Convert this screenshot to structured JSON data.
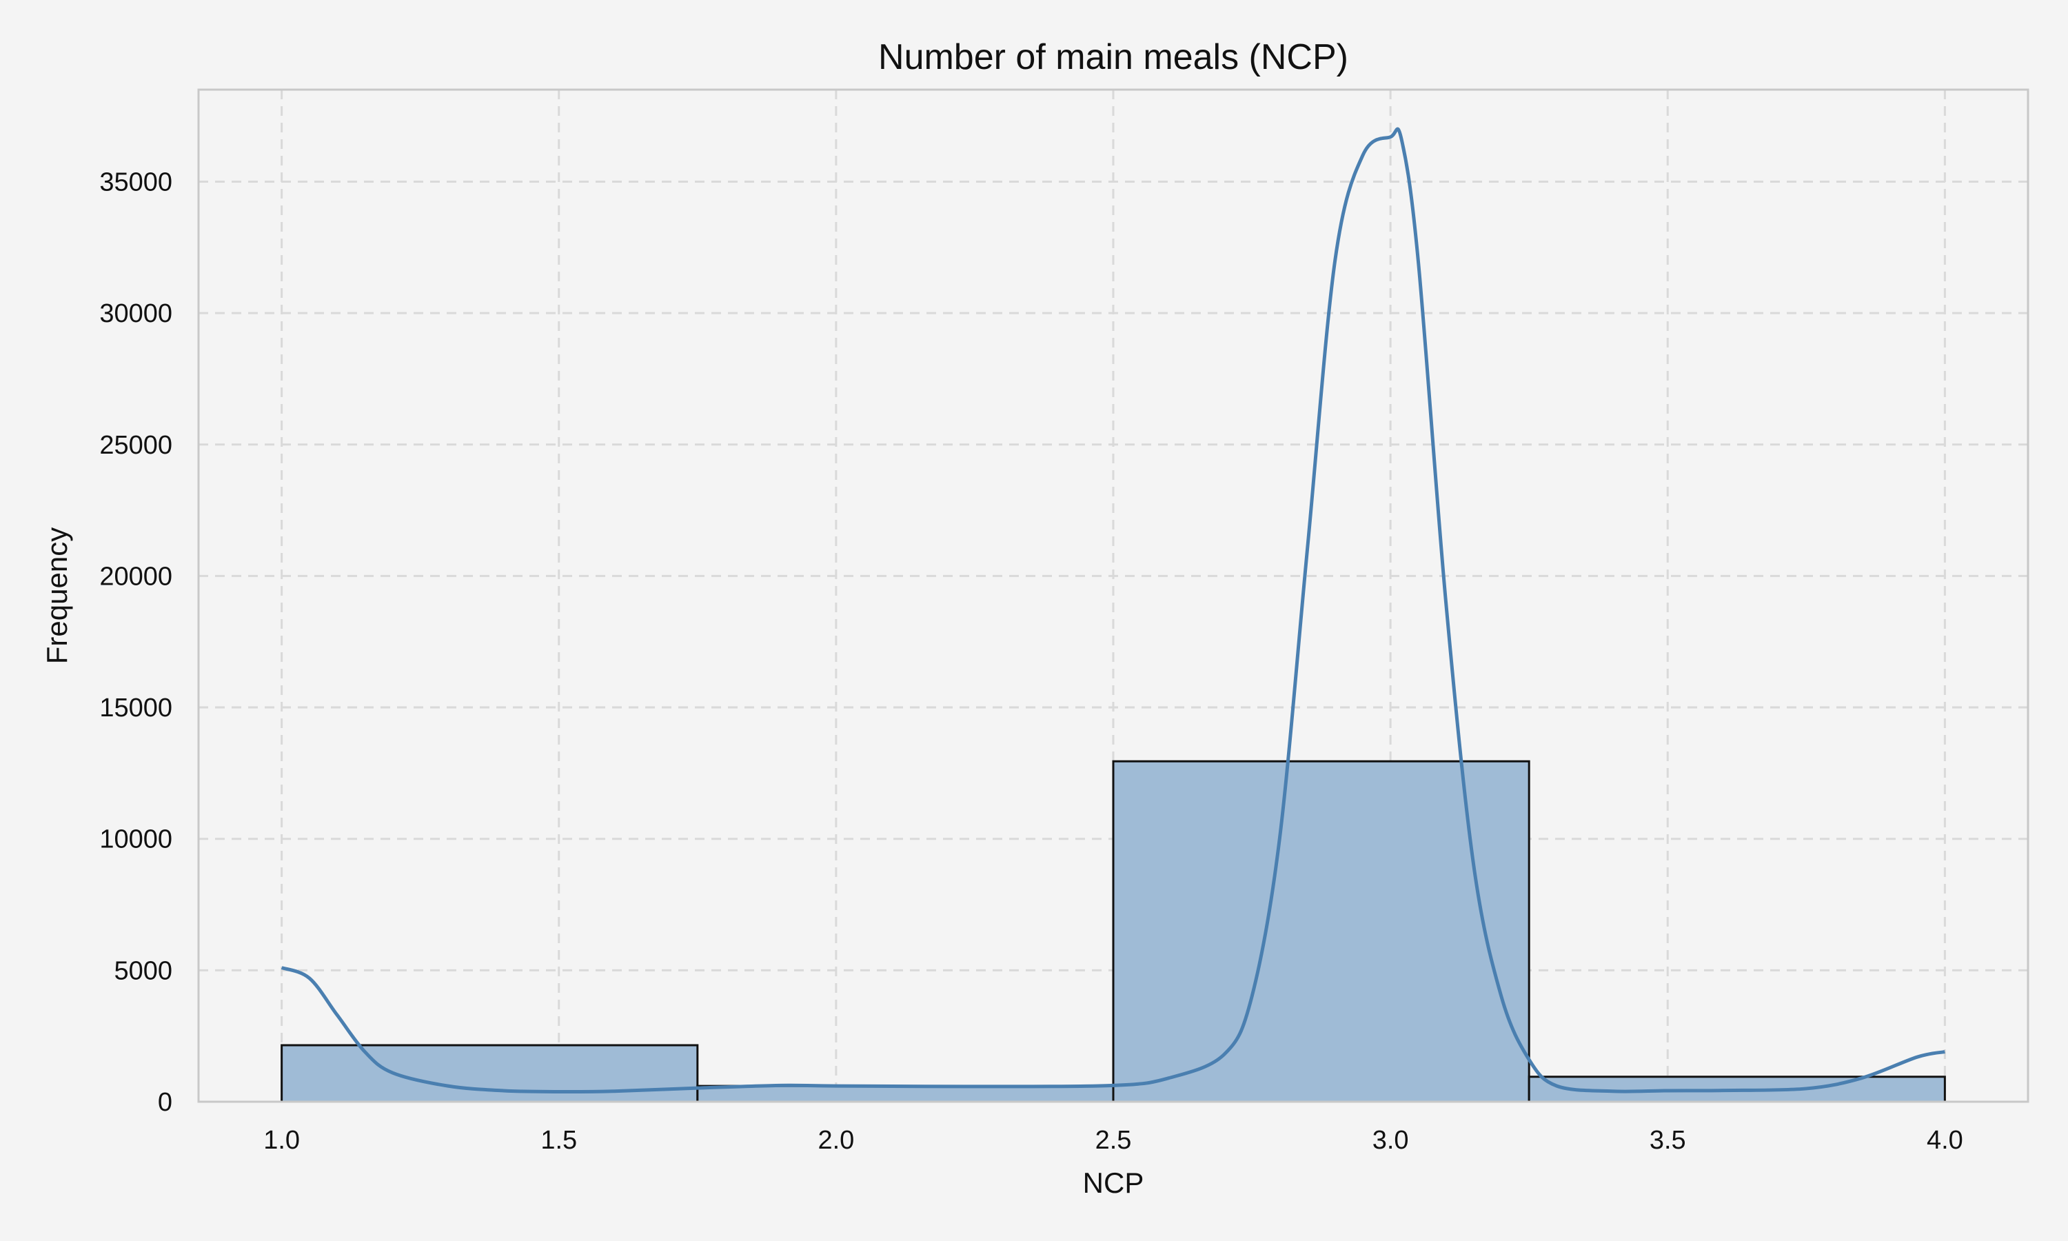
{
  "chart_data": {
    "type": "bar",
    "title": "Number of main meals (NCP)",
    "xlabel": "NCP",
    "ylabel": "Frequency",
    "xlim": [
      0.85,
      4.15
    ],
    "ylim": [
      0,
      38500
    ],
    "xticks": [
      1.0,
      1.5,
      2.0,
      2.5,
      3.0,
      3.5,
      4.0
    ],
    "xtick_labels": [
      "1.0",
      "1.5",
      "2.0",
      "2.5",
      "3.0",
      "3.5",
      "4.0"
    ],
    "yticks": [
      0,
      5000,
      10000,
      15000,
      20000,
      25000,
      30000,
      35000
    ],
    "ytick_labels": [
      "0",
      "5000",
      "10000",
      "15000",
      "20000",
      "25000",
      "30000",
      "35000"
    ],
    "grid": true,
    "bins": [
      {
        "start": 1.0,
        "end": 1.75,
        "count": 2150
      },
      {
        "start": 1.75,
        "end": 2.5,
        "count": 600
      },
      {
        "start": 2.5,
        "end": 3.25,
        "count": 12950
      },
      {
        "start": 3.25,
        "end": 4.0,
        "count": 950
      }
    ],
    "kde": {
      "x": [
        1.0,
        1.05,
        1.1,
        1.15,
        1.2,
        1.3,
        1.4,
        1.5,
        1.6,
        1.75,
        1.9,
        2.0,
        2.25,
        2.5,
        2.6,
        2.7,
        2.75,
        2.8,
        2.85,
        2.9,
        2.95,
        3.0,
        3.02,
        3.05,
        3.1,
        3.15,
        3.2,
        3.25,
        3.3,
        3.4,
        3.5,
        3.6,
        3.75,
        3.85,
        3.95,
        4.0
      ],
      "y": [
        5100,
        4700,
        3300,
        1900,
        1100,
        600,
        420,
        380,
        400,
        520,
        620,
        600,
        580,
        620,
        900,
        1800,
        4000,
        10000,
        21000,
        32000,
        36000,
        36700,
        36600,
        32000,
        19000,
        9000,
        4000,
        1600,
        600,
        400,
        420,
        430,
        500,
        900,
        1700,
        1900
      ]
    },
    "colors": {
      "bar_fill": "#9fbbd6",
      "bar_edge": "#111111",
      "kde_line": "#4a7fb0",
      "background": "#f4f4f4"
    }
  }
}
